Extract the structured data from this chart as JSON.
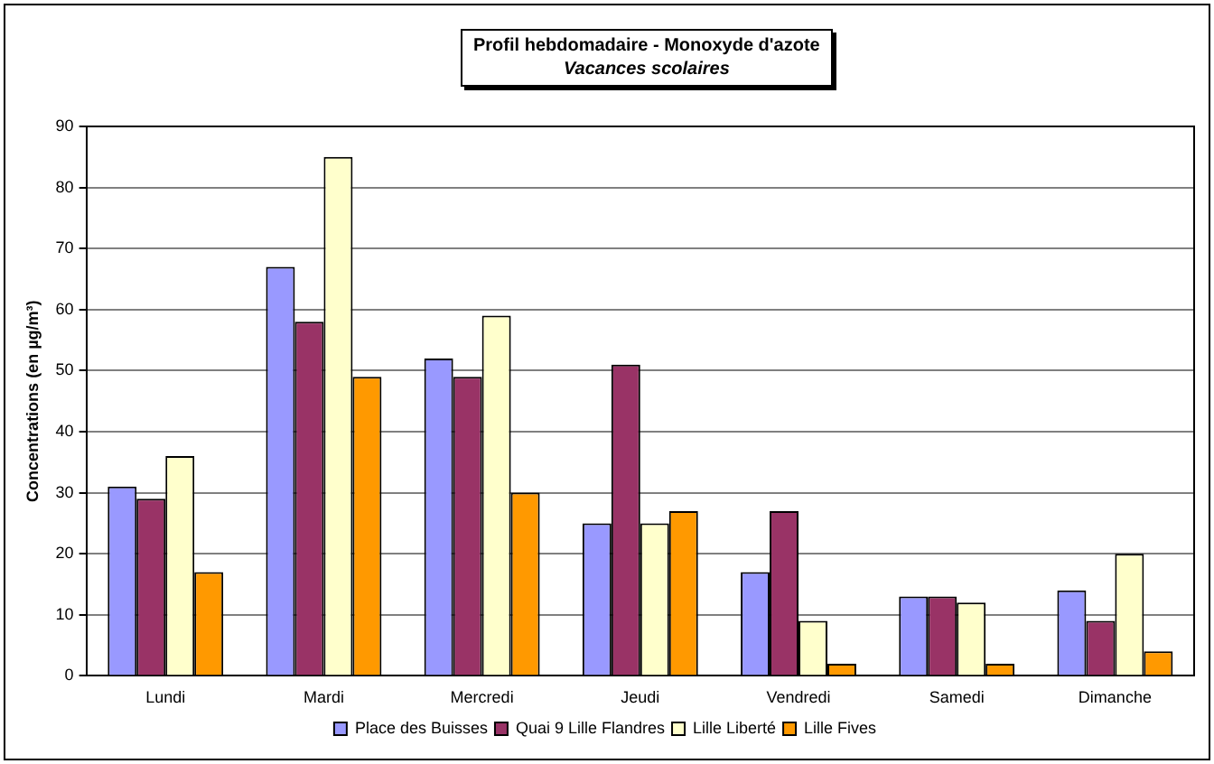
{
  "chart_data": {
    "type": "bar",
    "title": "Profil hebdomadaire - Monoxyde d'azote",
    "subtitle": "Vacances scolaires",
    "ylabel": "Concentrations (en µg/m³)",
    "categories": [
      "Lundi",
      "Mardi",
      "Mercredi",
      "Jeudi",
      "Vendredi",
      "Samedi",
      "Dimanche"
    ],
    "series": [
      {
        "name": "Place des Buisses",
        "color": "#9999ff",
        "values": [
          31,
          67,
          52,
          25,
          17,
          13,
          14
        ]
      },
      {
        "name": "Quai 9 Lille Flandres",
        "color": "#993366",
        "values": [
          29,
          58,
          49,
          51,
          27,
          13,
          9
        ]
      },
      {
        "name": "Lille Liberté",
        "color": "#ffffcc",
        "values": [
          36,
          85,
          59,
          25,
          9,
          12,
          20
        ]
      },
      {
        "name": "Lille Fives",
        "color": "#ff9900",
        "values": [
          17,
          49,
          30,
          27,
          2,
          2,
          4
        ]
      }
    ],
    "ylim": [
      0,
      90
    ],
    "yticks": [
      0,
      10,
      20,
      30,
      40,
      50,
      60,
      70,
      80,
      90
    ],
    "grid": "y",
    "legend": "bottom"
  }
}
